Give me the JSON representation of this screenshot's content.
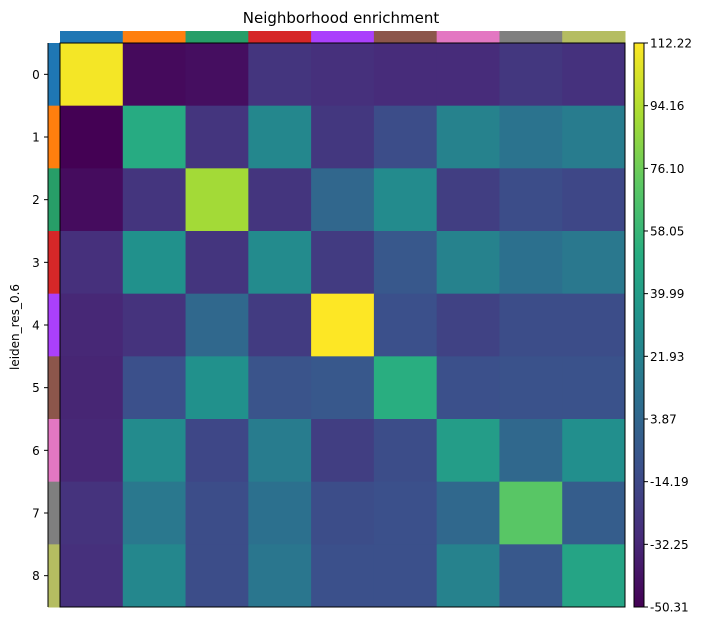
{
  "chart_data": {
    "type": "heatmap",
    "title": "Neighborhood enrichment",
    "ylabel": "leiden_res_0.6",
    "row_labels": [
      "0",
      "1",
      "2",
      "3",
      "4",
      "5",
      "6",
      "7",
      "8"
    ],
    "cluster_colors": [
      "#1f77b4",
      "#ff7f0e",
      "#279e68",
      "#d62728",
      "#aa40fc",
      "#8c564b",
      "#e377c2",
      "#7f7f7f",
      "#b5bd61"
    ],
    "colormap": "viridis",
    "vmin": -50.31,
    "vmax": 112.22,
    "colorbar_ticks": [
      "112.22",
      "94.16",
      "76.10",
      "58.05",
      "39.99",
      "21.93",
      "3.87",
      "-14.19",
      "-32.25",
      "-50.31"
    ],
    "values": [
      [
        110.0,
        -46.0,
        -44.0,
        -25.0,
        -28.0,
        -30.0,
        -30.0,
        -24.0,
        -27.0
      ],
      [
        -50.31,
        50.0,
        -25.0,
        25.0,
        -24.0,
        -12.0,
        22.0,
        12.0,
        18.0
      ],
      [
        -45.0,
        -25.0,
        90.0,
        -25.0,
        4.0,
        28.0,
        -20.0,
        -12.0,
        -15.0
      ],
      [
        -28.0,
        32.0,
        -25.0,
        28.0,
        -22.0,
        -5.0,
        22.0,
        10.0,
        15.0
      ],
      [
        -32.0,
        -26.0,
        5.0,
        -22.0,
        112.22,
        -10.0,
        -18.0,
        -12.0,
        -12.0
      ],
      [
        -33.0,
        -10.0,
        32.0,
        -8.0,
        -5.0,
        52.0,
        -10.0,
        -9.0,
        -9.0
      ],
      [
        -32.0,
        28.0,
        -15.0,
        18.0,
        -20.0,
        -12.0,
        40.0,
        5.0,
        30.0
      ],
      [
        -26.0,
        15.0,
        -12.0,
        10.0,
        -12.0,
        -10.0,
        5.0,
        70.0,
        -2.0
      ],
      [
        -28.0,
        25.0,
        -12.0,
        14.0,
        -10.0,
        -10.0,
        22.0,
        -5.0,
        45.0
      ]
    ]
  }
}
